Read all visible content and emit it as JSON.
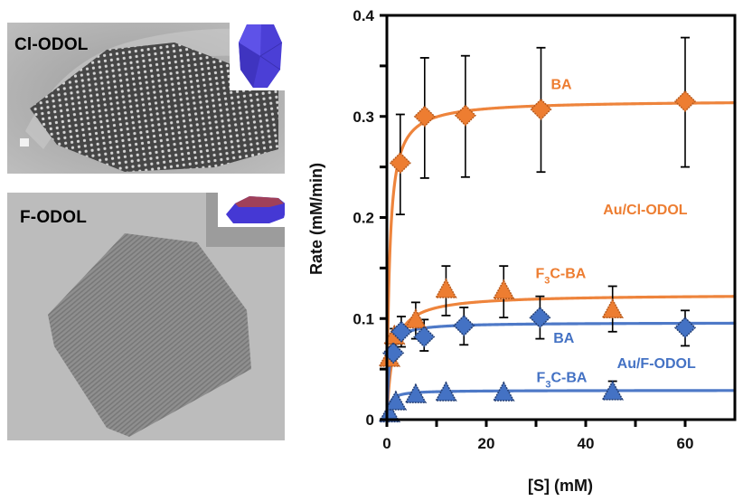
{
  "panels": {
    "top": {
      "label": "Cl-ODOL",
      "inset_shape": "bipyramid"
    },
    "bottom": {
      "label": "F-ODOL",
      "inset_shape": "plate"
    }
  },
  "colors": {
    "orange": "#ED7D31",
    "orange_dark": "#B85A1C",
    "blue": "#4472C4",
    "blue_dark": "#233E73",
    "axis": "#000000"
  },
  "chart_data": {
    "type": "scatter",
    "title": "",
    "xlabel": "[S] (mM)",
    "ylabel": "Rate (mM/min)",
    "xlim": [
      0,
      70
    ],
    "ylim": [
      0,
      0.4
    ],
    "x_ticks": [
      0,
      20,
      40,
      60
    ],
    "x_tick_labels": [
      "0",
      "20",
      "40",
      "60"
    ],
    "x_minor_ticks": [
      10,
      30,
      50
    ],
    "y_ticks": [
      0,
      0.1,
      0.2,
      0.3,
      0.4
    ],
    "y_tick_labels": [
      "0",
      "0.1",
      "0.2",
      "0.3",
      "0.4"
    ],
    "y_minor_ticks": [
      0.05,
      0.15,
      0.25,
      0.35
    ],
    "grid": false,
    "series": [
      {
        "name": "Au/Cl-ODOL BA",
        "color": "orange",
        "marker": "diamond",
        "x": [
          2.7,
          7.6,
          15.8,
          31,
          60
        ],
        "y": [
          0.254,
          0.3,
          0.301,
          0.307,
          0.315
        ],
        "err_low": [
          0.203,
          0.239,
          0.24,
          0.245,
          0.25
        ],
        "err_high": [
          0.302,
          0.358,
          0.36,
          0.368,
          0.378
        ],
        "fit": {
          "vmax": 0.316,
          "km": 0.55
        }
      },
      {
        "name": "Au/Cl-ODOL F3C-BA",
        "color": "orange",
        "marker": "triangle",
        "x": [
          0.5,
          1.5,
          5.8,
          11.9,
          23.5,
          45.4
        ],
        "y": [
          0.06,
          0.082,
          0.098,
          0.128,
          0.127,
          0.108
        ],
        "err_low": [
          0.055,
          0.075,
          0.08,
          0.103,
          0.101,
          0.087
        ],
        "err_high": [
          0.065,
          0.09,
          0.116,
          0.152,
          0.152,
          0.132
        ],
        "fit": {
          "vmax": 0.124,
          "km": 1.2
        }
      },
      {
        "name": "Au/F-ODOL BA",
        "color": "blue",
        "marker": "diamond",
        "x": [
          1.3,
          2.9,
          7.5,
          15.5,
          30.8,
          60
        ],
        "y": [
          0.066,
          0.087,
          0.082,
          0.093,
          0.101,
          0.091
        ],
        "err_low": [
          0.06,
          0.072,
          0.068,
          0.074,
          0.08,
          0.073
        ],
        "err_high": [
          0.072,
          0.102,
          0.099,
          0.111,
          0.122,
          0.108
        ],
        "fit": {
          "vmax": 0.096,
          "km": 0.45
        }
      },
      {
        "name": "Au/F-ODOL F3C-BA",
        "color": "blue",
        "marker": "triangle",
        "x": [
          0.5,
          1.8,
          5.8,
          11.9,
          23.5,
          45.4
        ],
        "y": [
          0.005,
          0.017,
          0.024,
          0.026,
          0.026,
          0.027
        ],
        "err_low": [
          0.004,
          0.015,
          0.022,
          0.024,
          0.024,
          0.025
        ],
        "err_high": [
          0.006,
          0.019,
          0.026,
          0.028,
          0.028,
          0.038
        ],
        "fit": {
          "vmax": 0.029,
          "km": 0.5
        }
      }
    ],
    "annotations": [
      {
        "text": "BA",
        "color": "orange",
        "x": 33.0,
        "y": 0.327
      },
      {
        "text": "Au/Cl-ODOL",
        "color": "orange",
        "x": 43.5,
        "y": 0.203
      },
      {
        "text_main": "F",
        "text_sub": "3",
        "text_rest": "C-BA",
        "color": "orange",
        "x": 29.9,
        "y": 0.14
      },
      {
        "text": "BA",
        "color": "blue",
        "x": 33.5,
        "y": 0.076
      },
      {
        "text": "Au/F-ODOL",
        "color": "blue",
        "x": 46.3,
        "y": 0.051
      },
      {
        "text_main": "F",
        "text_sub": "3",
        "text_rest": "C-BA",
        "color": "blue",
        "x": 30.1,
        "y": 0.037
      }
    ]
  }
}
